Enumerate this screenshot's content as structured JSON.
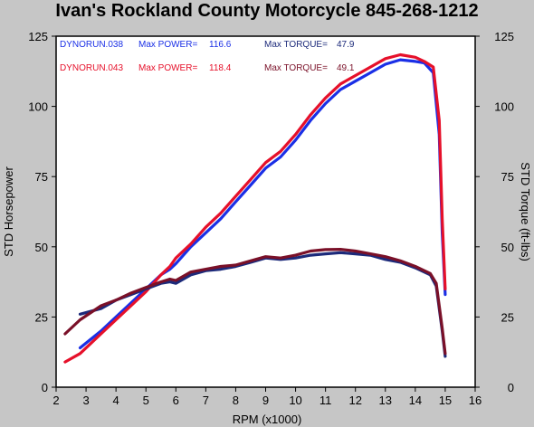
{
  "chart_data": {
    "type": "line",
    "title": "Ivan's Rockland County Motorcycle  845-268-1212",
    "xlabel": "RPM (x1000)",
    "ylabel": "STD Horsepower",
    "y2label": "STD Torque (ft-lbs)",
    "xlim": [
      2,
      16
    ],
    "ylim": [
      0,
      125
    ],
    "y2lim": [
      0,
      125
    ],
    "x_ticks": [
      "2",
      "3",
      "4",
      "5",
      "6",
      "7",
      "8",
      "9",
      "10",
      "11",
      "12",
      "13",
      "14",
      "15",
      "16"
    ],
    "y_ticks": [
      "0",
      "25",
      "50",
      "75",
      "100",
      "125"
    ],
    "y2_ticks": [
      "0",
      "25",
      "50",
      "75",
      "100",
      "125"
    ],
    "grid": false,
    "colors": {
      "background": "#c6c6c6",
      "plot_bg": "#ffffff",
      "run1": "#1a2fe6",
      "run2": "#e6102a",
      "run1_torque": "#1c2a7a",
      "run2_torque": "#7a1028"
    },
    "legend": [
      {
        "run": "DYNORUN.038",
        "power_label": "Max POWER=",
        "power": "116.6",
        "torque_label": "Max TORQUE=",
        "torque": "47.9",
        "color": "#1a2fe6",
        "torque_color": "#1c2a7a"
      },
      {
        "run": "DYNORUN.043",
        "power_label": "Max POWER=",
        "power": "118.4",
        "torque_label": "Max TORQUE=",
        "torque": "49.1",
        "color": "#e6102a",
        "torque_color": "#7a1028"
      }
    ],
    "series": [
      {
        "name": "DYNORUN.038",
        "kind": "power",
        "color": "#1a2fe6",
        "points": [
          [
            2.8,
            14
          ],
          [
            3.5,
            20
          ],
          [
            4.0,
            25
          ],
          [
            4.5,
            30
          ],
          [
            5.0,
            35
          ],
          [
            5.5,
            40
          ],
          [
            5.8,
            42
          ],
          [
            6.0,
            44
          ],
          [
            6.5,
            50
          ],
          [
            7.0,
            55
          ],
          [
            7.5,
            60
          ],
          [
            8.0,
            66
          ],
          [
            8.5,
            72
          ],
          [
            9.0,
            78
          ],
          [
            9.5,
            82
          ],
          [
            10.0,
            88
          ],
          [
            10.5,
            95
          ],
          [
            11.0,
            101
          ],
          [
            11.5,
            106
          ],
          [
            12.0,
            109
          ],
          [
            12.5,
            112
          ],
          [
            13.0,
            115
          ],
          [
            13.5,
            116.6
          ],
          [
            14.0,
            116
          ],
          [
            14.3,
            115.5
          ],
          [
            14.6,
            112
          ],
          [
            14.8,
            90
          ],
          [
            14.9,
            55
          ],
          [
            15.0,
            33
          ]
        ]
      },
      {
        "name": "DYNORUN.043",
        "kind": "power",
        "color": "#e6102a",
        "points": [
          [
            2.3,
            9
          ],
          [
            2.8,
            12
          ],
          [
            3.5,
            19
          ],
          [
            4.0,
            24
          ],
          [
            4.5,
            29
          ],
          [
            5.0,
            34
          ],
          [
            5.5,
            40
          ],
          [
            5.8,
            43
          ],
          [
            6.0,
            46
          ],
          [
            6.5,
            51
          ],
          [
            7.0,
            57
          ],
          [
            7.5,
            62
          ],
          [
            8.0,
            68
          ],
          [
            8.5,
            74
          ],
          [
            9.0,
            80
          ],
          [
            9.5,
            84
          ],
          [
            10.0,
            90
          ],
          [
            10.5,
            97
          ],
          [
            11.0,
            103
          ],
          [
            11.5,
            108
          ],
          [
            12.0,
            111
          ],
          [
            12.5,
            114
          ],
          [
            13.0,
            117
          ],
          [
            13.5,
            118.4
          ],
          [
            14.0,
            117.5
          ],
          [
            14.3,
            116
          ],
          [
            14.6,
            114
          ],
          [
            14.8,
            95
          ],
          [
            14.9,
            60
          ],
          [
            15.0,
            35
          ]
        ]
      },
      {
        "name": "DYNORUN.038 torque",
        "kind": "torque",
        "color": "#1c2a7a",
        "points": [
          [
            2.8,
            26
          ],
          [
            3.5,
            28
          ],
          [
            4.0,
            31
          ],
          [
            4.5,
            33
          ],
          [
            5.0,
            35
          ],
          [
            5.5,
            37
          ],
          [
            5.8,
            37.5
          ],
          [
            6.0,
            37
          ],
          [
            6.5,
            40
          ],
          [
            7.0,
            41.5
          ],
          [
            7.5,
            42
          ],
          [
            8.0,
            43
          ],
          [
            8.5,
            44.5
          ],
          [
            9.0,
            46
          ],
          [
            9.5,
            45.5
          ],
          [
            10.0,
            46
          ],
          [
            10.5,
            47
          ],
          [
            11.0,
            47.5
          ],
          [
            11.5,
            47.9
          ],
          [
            12.0,
            47.5
          ],
          [
            12.5,
            47
          ],
          [
            13.0,
            45.5
          ],
          [
            13.5,
            44.5
          ],
          [
            14.0,
            42.5
          ],
          [
            14.5,
            40
          ],
          [
            14.7,
            36
          ],
          [
            14.9,
            20
          ],
          [
            15.0,
            11
          ]
        ]
      },
      {
        "name": "DYNORUN.043 torque",
        "kind": "torque",
        "color": "#7a1028",
        "points": [
          [
            2.3,
            19
          ],
          [
            2.8,
            24
          ],
          [
            3.5,
            29
          ],
          [
            4.0,
            31
          ],
          [
            4.5,
            33.5
          ],
          [
            5.0,
            35.5
          ],
          [
            5.5,
            37.5
          ],
          [
            5.8,
            38.5
          ],
          [
            6.0,
            38
          ],
          [
            6.5,
            41
          ],
          [
            7.0,
            42
          ],
          [
            7.5,
            43
          ],
          [
            8.0,
            43.5
          ],
          [
            8.5,
            45
          ],
          [
            9.0,
            46.5
          ],
          [
            9.5,
            46
          ],
          [
            10.0,
            47
          ],
          [
            10.5,
            48.5
          ],
          [
            11.0,
            49
          ],
          [
            11.5,
            49.1
          ],
          [
            12.0,
            48.5
          ],
          [
            12.5,
            47.5
          ],
          [
            13.0,
            46.5
          ],
          [
            13.5,
            45
          ],
          [
            14.0,
            43
          ],
          [
            14.5,
            40.5
          ],
          [
            14.7,
            37
          ],
          [
            14.9,
            21
          ],
          [
            15.0,
            12
          ]
        ]
      }
    ]
  }
}
